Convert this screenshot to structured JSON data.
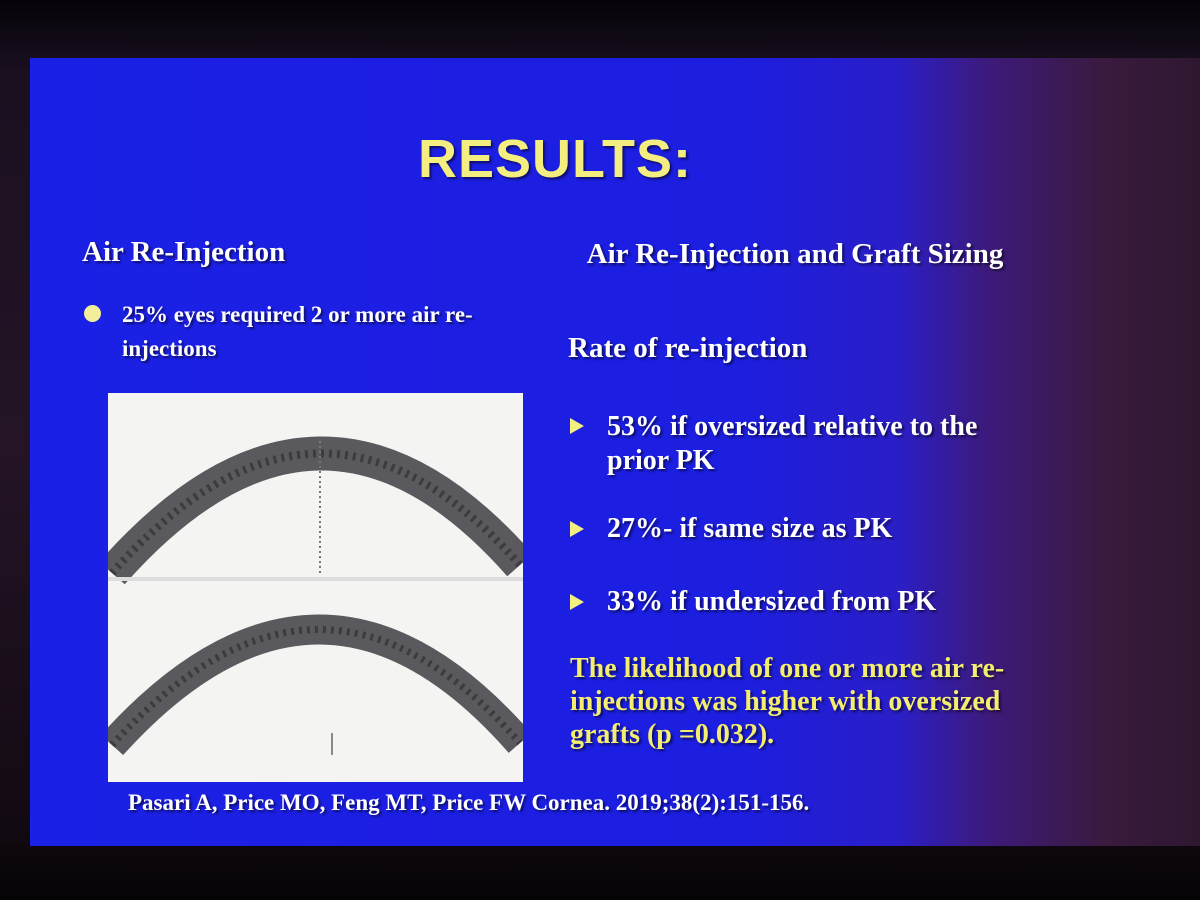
{
  "slide": {
    "title": "RESULTS:",
    "left": {
      "heading": "Air Re-Injection",
      "bullets": [
        "25% eyes required 2 or more air re-injections"
      ]
    },
    "right": {
      "heading": "Air Re-Injection and Graft Sizing",
      "subheading": "Rate of re-injection",
      "items": [
        "53%  if oversized relative to the prior PK",
        "27%-  if same size as PK",
        "33%  if undersized from PK"
      ],
      "conclusion": "The likelihood of one or more air re-injections was higher with oversized grafts (p =0.032)."
    },
    "citation": "Pasari A, Price MO, Feng MT, Price FW Cornea. 2019;38(2):151-156."
  }
}
